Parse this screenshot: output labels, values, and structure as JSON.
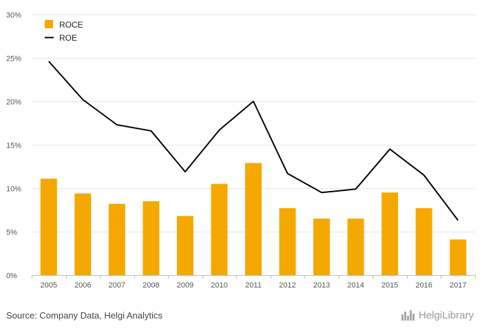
{
  "chart_data": {
    "type": "bar",
    "categories": [
      "2005",
      "2006",
      "2007",
      "2008",
      "2009",
      "2010",
      "2011",
      "2012",
      "2013",
      "2014",
      "2015",
      "2016",
      "2017"
    ],
    "series": [
      {
        "name": "ROCE",
        "type": "bar",
        "color": "#f5a800",
        "values": [
          11.1,
          9.4,
          8.2,
          8.5,
          6.8,
          10.5,
          12.9,
          7.7,
          6.5,
          6.5,
          9.5,
          7.7,
          4.1
        ]
      },
      {
        "name": "ROE",
        "type": "line",
        "color": "#000000",
        "values": [
          24.6,
          20.2,
          17.3,
          16.6,
          11.9,
          16.7,
          20.0,
          11.7,
          9.5,
          9.9,
          14.5,
          11.5,
          6.3
        ]
      }
    ],
    "ylim": [
      0,
      30
    ],
    "yticks": [
      "0%",
      "5%",
      "10%",
      "15%",
      "20%",
      "25%",
      "30%"
    ],
    "grid": true,
    "legend_position": "top-left"
  },
  "source": "Source: Company Data, Helgi Analytics",
  "logo": {
    "text": "HelgiLibrary",
    "icon": "city-skyline-icon"
  }
}
